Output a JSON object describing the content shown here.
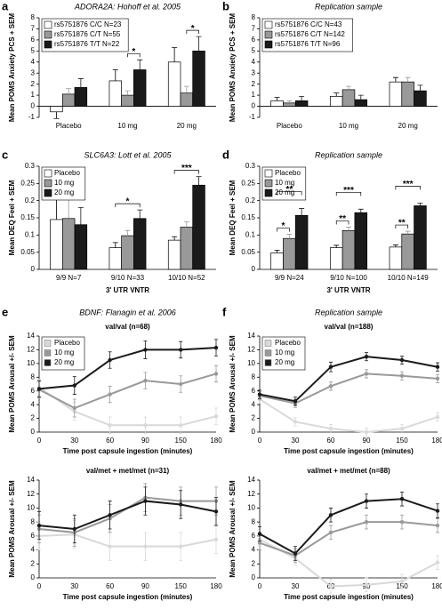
{
  "chart_data": [
    {
      "type": "bar",
      "panel_label": "a",
      "title": "ADORA2A: Hohoff et al. 2005",
      "y_label": "Mean POMS Anxiety PCS + SEM",
      "categories": [
        "Placebo",
        "10 mg",
        "20 mg"
      ],
      "series": [
        {
          "name": "rs5751876 C/C N=23",
          "color": "#ffffff",
          "values": [
            -0.5,
            2.3,
            4.0
          ],
          "errors": [
            0.6,
            1.0,
            1.3
          ]
        },
        {
          "name": "rs5751876 C/T N=55",
          "color": "#999999",
          "values": [
            1.1,
            1.0,
            1.2
          ],
          "errors": [
            0.5,
            0.4,
            0.6
          ]
        },
        {
          "name": "rs5751876 T/T N=22",
          "color": "#1a1a1a",
          "values": [
            1.7,
            3.3,
            5.0
          ],
          "errors": [
            0.8,
            0.9,
            1.3
          ]
        }
      ],
      "ylim": [
        -1,
        8
      ],
      "yticks": [
        -1,
        0,
        1,
        2,
        3,
        4,
        5,
        6,
        7,
        8
      ],
      "legend": "upper left",
      "annotations": [
        "*",
        "*"
      ]
    },
    {
      "type": "bar",
      "panel_label": "b",
      "title": "Replication sample",
      "y_label": "Mean POMS Anxiety PCS + SEM",
      "categories": [
        "Placebo",
        "10 mg",
        "20 mg"
      ],
      "series": [
        {
          "name": "rs5751876 C/C N=43",
          "color": "#ffffff",
          "values": [
            0.5,
            0.9,
            2.2
          ],
          "errors": [
            0.3,
            0.3,
            0.4
          ]
        },
        {
          "name": "rs5751876 C/T N=142",
          "color": "#999999",
          "values": [
            0.3,
            1.5,
            2.2
          ],
          "errors": [
            0.2,
            0.3,
            0.4
          ]
        },
        {
          "name": "rs5751876 T/T N=96",
          "color": "#1a1a1a",
          "values": [
            0.5,
            0.6,
            1.4
          ],
          "errors": [
            0.4,
            0.4,
            0.5
          ]
        }
      ],
      "ylim": [
        -1,
        8
      ],
      "yticks": [
        -1,
        0,
        1,
        2,
        3,
        4,
        5,
        6,
        7,
        8
      ],
      "legend": "upper left"
    },
    {
      "type": "bar",
      "panel_label": "c",
      "title": "SLC6A3: Lott et al. 2005",
      "y_label": "Mean DEQ Feel + SEM",
      "x_label": "3' UTR VNTR",
      "categories": [
        "9/9 N=7",
        "9/10 N=33",
        "10/10 N=52"
      ],
      "series": [
        {
          "name": "Placebo",
          "color": "#ffffff",
          "values": [
            0.145,
            0.063,
            0.085
          ],
          "errors": [
            0.06,
            0.015,
            0.01
          ]
        },
        {
          "name": "10 mg",
          "color": "#999999",
          "values": [
            0.148,
            0.098,
            0.123
          ],
          "errors": [
            0.06,
            0.015,
            0.015
          ]
        },
        {
          "name": "20 mg",
          "color": "#1a1a1a",
          "values": [
            0.13,
            0.148,
            0.245
          ],
          "errors": [
            0.05,
            0.025,
            0.025
          ]
        }
      ],
      "ylim": [
        0,
        0.3
      ],
      "yticks": [
        0,
        0.05,
        0.1,
        0.15,
        0.2,
        0.25,
        0.3
      ],
      "legend": "upper left",
      "annotations": [
        "*",
        "***"
      ]
    },
    {
      "type": "bar",
      "panel_label": "d",
      "title": "Replication sample",
      "y_label": "Mean DEQ Feel + SEM",
      "x_label": "3' UTR VNTR",
      "categories": [
        "9/9 N=24",
        "9/10 N=100",
        "10/10 N=149"
      ],
      "series": [
        {
          "name": "Placebo",
          "color": "#ffffff",
          "values": [
            0.048,
            0.063,
            0.065
          ],
          "errors": [
            0.008,
            0.007,
            0.006
          ]
        },
        {
          "name": "10 mg",
          "color": "#999999",
          "values": [
            0.09,
            0.113,
            0.103
          ],
          "errors": [
            0.012,
            0.01,
            0.008
          ]
        },
        {
          "name": "20 mg",
          "color": "#1a1a1a",
          "values": [
            0.157,
            0.165,
            0.185
          ],
          "errors": [
            0.02,
            0.01,
            0.008
          ]
        }
      ],
      "ylim": [
        0,
        0.3
      ],
      "yticks": [
        0,
        0.05,
        0.1,
        0.15,
        0.2,
        0.25,
        0.3
      ],
      "legend": "upper left",
      "annotations": [
        "*",
        "**",
        "**",
        "***",
        "**",
        "***"
      ]
    },
    {
      "type": "line",
      "panel_label": "e",
      "title": "BDNF: Flanagin et al. 2006",
      "subtitle": "val/val (n=68)",
      "y_label": "Mean POMS Arousal +/- SEM",
      "x_label": "Time post capsule ingestion (minutes)",
      "categories": [
        "0",
        "30",
        "60",
        "90",
        "150",
        "180"
      ],
      "series": [
        {
          "name": "Placebo",
          "color": "#d9d9d9",
          "values": [
            6.5,
            3,
            1,
            1,
            1,
            2.3
          ],
          "errors": [
            1.2,
            1.3,
            1.2,
            1.2,
            1.2,
            1.2
          ]
        },
        {
          "name": "10 mg",
          "color": "#999999",
          "values": [
            6.2,
            3.5,
            5.5,
            7.5,
            7,
            8.5
          ],
          "errors": [
            1.2,
            1.3,
            1.2,
            1.2,
            1.2,
            1.2
          ]
        },
        {
          "name": "20 mg",
          "color": "#1a1a1a",
          "values": [
            6.3,
            6.8,
            10.5,
            12,
            12,
            12.3
          ],
          "errors": [
            1.2,
            1.3,
            1.2,
            1.3,
            1.2,
            1.2
          ]
        }
      ],
      "ylim": [
        0,
        14
      ],
      "yticks": [
        0,
        2,
        4,
        6,
        8,
        10,
        12,
        14
      ],
      "legend": "upper left"
    },
    {
      "type": "line",
      "panel_label": "f",
      "title": "Replication sample",
      "subtitle": "val/val (n=188)",
      "y_label": "Mean POMS Arousal +/- SEM",
      "x_label": "Time post capsule ingestion (minutes)",
      "categories": [
        "0",
        "30",
        "60",
        "90",
        "150",
        "180"
      ],
      "series": [
        {
          "name": "Placebo",
          "color": "#d9d9d9",
          "values": [
            4.8,
            1.5,
            0.5,
            0,
            0.5,
            2.2
          ],
          "errors": [
            0.6,
            0.6,
            0.6,
            0.6,
            0.6,
            0.6
          ]
        },
        {
          "name": "10 mg",
          "color": "#999999",
          "values": [
            5.3,
            4.2,
            6.7,
            8.5,
            8.2,
            7.8
          ],
          "errors": [
            0.6,
            0.6,
            0.6,
            0.6,
            0.6,
            0.6
          ]
        },
        {
          "name": "20 mg",
          "color": "#1a1a1a",
          "values": [
            5.5,
            4.5,
            9.5,
            11,
            10.5,
            9.5
          ],
          "errors": [
            0.6,
            0.6,
            0.7,
            0.6,
            0.6,
            0.6
          ]
        }
      ],
      "ylim": [
        0,
        14
      ],
      "yticks": [
        0,
        2,
        4,
        6,
        8,
        10,
        12,
        14
      ],
      "legend": "upper left"
    },
    {
      "type": "line",
      "subtitle": "val/met + met/met (n=31)",
      "y_label": "Mean POMS Arousal +/- SEM",
      "x_label": "Time post capsule ingestion (minutes)",
      "categories": [
        "0",
        "30",
        "60",
        "90",
        "150",
        "180"
      ],
      "series": [
        {
          "name": "Placebo",
          "color": "#d9d9d9",
          "values": [
            6,
            6.2,
            4.5,
            4.5,
            4.5,
            5.5
          ],
          "errors": [
            2,
            2,
            2,
            2,
            2,
            2
          ]
        },
        {
          "name": "10 mg",
          "color": "#999999",
          "values": [
            7,
            6.5,
            8.5,
            11.5,
            11,
            11
          ],
          "errors": [
            2,
            2,
            2,
            2,
            2,
            2
          ]
        },
        {
          "name": "20 mg",
          "color": "#1a1a1a",
          "values": [
            7.5,
            7,
            9,
            11,
            10.5,
            9.5
          ],
          "errors": [
            2,
            2,
            2,
            2,
            2,
            2
          ]
        }
      ],
      "ylim": [
        0,
        14
      ],
      "yticks": [
        0,
        2,
        4,
        6,
        8,
        10,
        12,
        14
      ]
    },
    {
      "type": "line",
      "subtitle": "val/met + met/met (n=88)",
      "y_label": "Mean POMS Arousal +/- SEM",
      "x_label": "Time post capsule ingestion (minutes)",
      "categories": [
        "0",
        "30",
        "60",
        "90",
        "150",
        "180"
      ],
      "series": [
        {
          "name": "Placebo",
          "color": "#d9d9d9",
          "values": [
            5.5,
            2.8,
            -1.2,
            -1,
            -0.5,
            2.2
          ],
          "errors": [
            1,
            1,
            1,
            1,
            1,
            1
          ]
        },
        {
          "name": "10 mg",
          "color": "#999999",
          "values": [
            5,
            3.2,
            6.5,
            8,
            8,
            7.5
          ],
          "errors": [
            1,
            1,
            1,
            1,
            1,
            1
          ]
        },
        {
          "name": "20 mg",
          "color": "#1a1a1a",
          "values": [
            6.3,
            3.5,
            9,
            11,
            11.3,
            9.6
          ],
          "errors": [
            1,
            1,
            1,
            1,
            1,
            1
          ]
        }
      ],
      "ylim": [
        0,
        14
      ],
      "yticks": [
        0,
        2,
        4,
        6,
        8,
        10,
        12,
        14
      ]
    }
  ]
}
